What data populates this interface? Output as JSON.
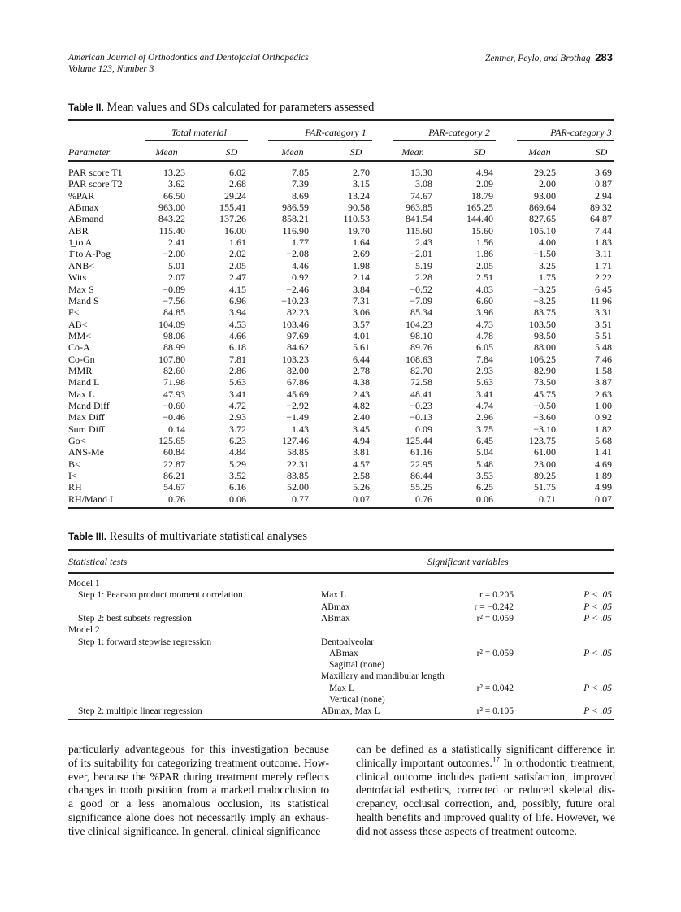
{
  "header": {
    "journal": "American Journal of Orthodontics and Dentofacial Orthopedics",
    "volume": "Volume 123, Number 3",
    "authors": "Zentner, Peylo, and Brothag",
    "page_number": "283"
  },
  "table2": {
    "label": "Table II.",
    "title": "Mean values and SDs calculated for parameters assessed",
    "groups": [
      "Total material",
      "PAR-category 1",
      "PAR-category 2",
      "PAR-category 3"
    ],
    "param_header": "Parameter",
    "mean_label": "Mean",
    "sd_label": "SD",
    "rows": [
      [
        "PAR score T1",
        "13.23",
        "6.02",
        "7.85",
        "2.70",
        "13.30",
        "4.94",
        "29.25",
        "3.69"
      ],
      [
        "PAR score T2",
        "3.62",
        "2.68",
        "7.39",
        "3.15",
        "3.08",
        "2.09",
        "2.00",
        "0.87"
      ],
      [
        "%PAR",
        "66.50",
        "29.24",
        "8.69",
        "13.24",
        "74.67",
        "18.79",
        "93.00",
        "2.94"
      ],
      [
        "ABmax",
        "963.00",
        "155.41",
        "986.59",
        "90.58",
        "963.85",
        "165.25",
        "869.64",
        "89.32"
      ],
      [
        "ABmand",
        "843.22",
        "137.26",
        "858.21",
        "110.53",
        "841.54",
        "144.40",
        "827.65",
        "64.87"
      ],
      [
        "ABR",
        "115.40",
        "16.00",
        "116.90",
        "19.70",
        "115.60",
        "15.60",
        "105.10",
        "7.44"
      ],
      [
        "1̲ to A",
        "2.41",
        "1.61",
        "1.77",
        "1.64",
        "2.43",
        "1.56",
        "4.00",
        "1.83"
      ],
      [
        "1̄ to A-Pog",
        "−2.00",
        "2.02",
        "−2.08",
        "2.69",
        "−2.01",
        "1.86",
        "−1.50",
        "3.11"
      ],
      [
        "ANB<",
        "5.01",
        "2.05",
        "4.46",
        "1.98",
        "5.19",
        "2.05",
        "3.25",
        "1.71"
      ],
      [
        "Wits",
        "2.07",
        "2.47",
        "0.92",
        "2.14",
        "2.28",
        "2.51",
        "1.75",
        "2.22"
      ],
      [
        "Max S",
        "−0.89",
        "4.15",
        "−2.46",
        "3.84",
        "−0.52",
        "4.03",
        "−3.25",
        "6.45"
      ],
      [
        "Mand S",
        "−7.56",
        "6.96",
        "−10.23",
        "7.31",
        "−7.09",
        "6.60",
        "−8.25",
        "11.96"
      ],
      [
        "F<",
        "84.85",
        "3.94",
        "82.23",
        "3.06",
        "85.34",
        "3.96",
        "83.75",
        "3.31"
      ],
      [
        "AB<",
        "104.09",
        "4.53",
        "103.46",
        "3.57",
        "104.23",
        "4.73",
        "103.50",
        "3.51"
      ],
      [
        "MM<",
        "98.06",
        "4.66",
        "97.69",
        "4.01",
        "98.10",
        "4.78",
        "98.50",
        "5.51"
      ],
      [
        "Co-A",
        "88.99",
        "6.18",
        "84.62",
        "5.61",
        "89.76",
        "6.05",
        "88.00",
        "5.48"
      ],
      [
        "Co-Gn",
        "107.80",
        "7.81",
        "103.23",
        "6.44",
        "108.63",
        "7.84",
        "106.25",
        "7.46"
      ],
      [
        "MMR",
        "82.60",
        "2.86",
        "82.00",
        "2.78",
        "82.70",
        "2.93",
        "82.90",
        "1.58"
      ],
      [
        "Mand L",
        "71.98",
        "5.63",
        "67.86",
        "4.38",
        "72.58",
        "5.63",
        "73.50",
        "3.87"
      ],
      [
        "Max L",
        "47.93",
        "3.41",
        "45.69",
        "2.43",
        "48.41",
        "3.41",
        "45.75",
        "2.63"
      ],
      [
        "Mand Diff",
        "−0.60",
        "4.72",
        "−2.92",
        "4.82",
        "−0.23",
        "4.74",
        "−0.50",
        "1.00"
      ],
      [
        "Max Diff",
        "−0.46",
        "2.93",
        "−1.49",
        "2.40",
        "−0.13",
        "2.96",
        "−3.60",
        "0.92"
      ],
      [
        "Sum Diff",
        "0.14",
        "3.72",
        "1.43",
        "3.45",
        "0.09",
        "3.75",
        "−3.10",
        "1.82"
      ],
      [
        "Go<",
        "125.65",
        "6.23",
        "127.46",
        "4.94",
        "125.44",
        "6.45",
        "123.75",
        "5.68"
      ],
      [
        "ANS-Me",
        "60.84",
        "4.84",
        "58.85",
        "3.81",
        "61.16",
        "5.04",
        "61.00",
        "1.41"
      ],
      [
        "B<",
        "22.87",
        "5.29",
        "22.31",
        "4.57",
        "22.95",
        "5.48",
        "23.00",
        "4.69"
      ],
      [
        "I<",
        "86.21",
        "3.52",
        "83.85",
        "2.58",
        "86.44",
        "3.53",
        "89.25",
        "1.89"
      ],
      [
        "RH",
        "54.67",
        "6.16",
        "52.00",
        "5.26",
        "55.25",
        "6.25",
        "51.75",
        "4.99"
      ],
      [
        "RH/Mand L",
        "0.76",
        "0.06",
        "0.77",
        "0.07",
        "0.76",
        "0.06",
        "0.71",
        "0.07"
      ]
    ]
  },
  "table3": {
    "label": "Table III.",
    "title": "Results of multivariate statistical analyses",
    "col_tests": "Statistical tests",
    "col_vars": "Significant variables",
    "rows": [
      {
        "test": "Model 1",
        "indent": 0,
        "var": "",
        "vindent": 0,
        "stat": "",
        "p": ""
      },
      {
        "test": "Step 1: Pearson product moment correlation",
        "indent": 1,
        "var": "Max L",
        "vindent": 0,
        "stat": "r = 0.205",
        "p": "P < .05"
      },
      {
        "test": "",
        "indent": 1,
        "var": "ABmax",
        "vindent": 0,
        "stat": "r = −0.242",
        "p": "P < .05"
      },
      {
        "test": "Step 2: best subsets regression",
        "indent": 1,
        "var": "ABmax",
        "vindent": 0,
        "stat": "r² = 0.059",
        "p": "P < .05"
      },
      {
        "test": "Model 2",
        "indent": 0,
        "var": "",
        "vindent": 0,
        "stat": "",
        "p": ""
      },
      {
        "test": "Step 1: forward stepwise regression",
        "indent": 1,
        "var": "Dentoalveolar",
        "vindent": 0,
        "stat": "",
        "p": ""
      },
      {
        "test": "",
        "indent": 1,
        "var": "ABmax",
        "vindent": 1,
        "stat": "r² = 0.059",
        "p": "P < .05"
      },
      {
        "test": "",
        "indent": 1,
        "var": "Sagittal (none)",
        "vindent": 1,
        "stat": "",
        "p": ""
      },
      {
        "test": "",
        "indent": 1,
        "var": "Maxillary and mandibular length",
        "vindent": 0,
        "stat": "",
        "p": ""
      },
      {
        "test": "",
        "indent": 1,
        "var": "Max L",
        "vindent": 1,
        "stat": "r² = 0.042",
        "p": "P < .05"
      },
      {
        "test": "",
        "indent": 1,
        "var": "Vertical (none)",
        "vindent": 1,
        "stat": "",
        "p": ""
      },
      {
        "test": "Step 2: multiple linear regression",
        "indent": 1,
        "var": "ABmax, Max L",
        "vindent": 0,
        "stat": "r² = 0.105",
        "p": "P < .05"
      }
    ]
  },
  "body": {
    "col1": [
      "particularly advantageous for this investigation because",
      "of its suitability for categorizing treatment outcome. How-",
      "ever, because the %PAR during treatment merely reflects",
      "changes in tooth position from a marked malocclusion to",
      "a good or a less anomalous occlusion, its statistical",
      "significance alone does not necessarily imply an exhaus-",
      "tive clinical significance. In general, clinical significance"
    ],
    "col2": [
      "can be defined as a statistically significant difference in",
      {
        "before": "clinically important outcomes.",
        "sup": "17",
        "after": " In orthodontic treatment,"
      },
      "clinical outcome includes patient satisfaction, improved",
      "dentofacial esthetics, corrected or reduced skeletal dis-",
      "crepancy, occlusal correction, and, possibly, future oral",
      "health benefits and improved quality of life. However, we",
      "did not assess these aspects of treatment outcome."
    ]
  }
}
